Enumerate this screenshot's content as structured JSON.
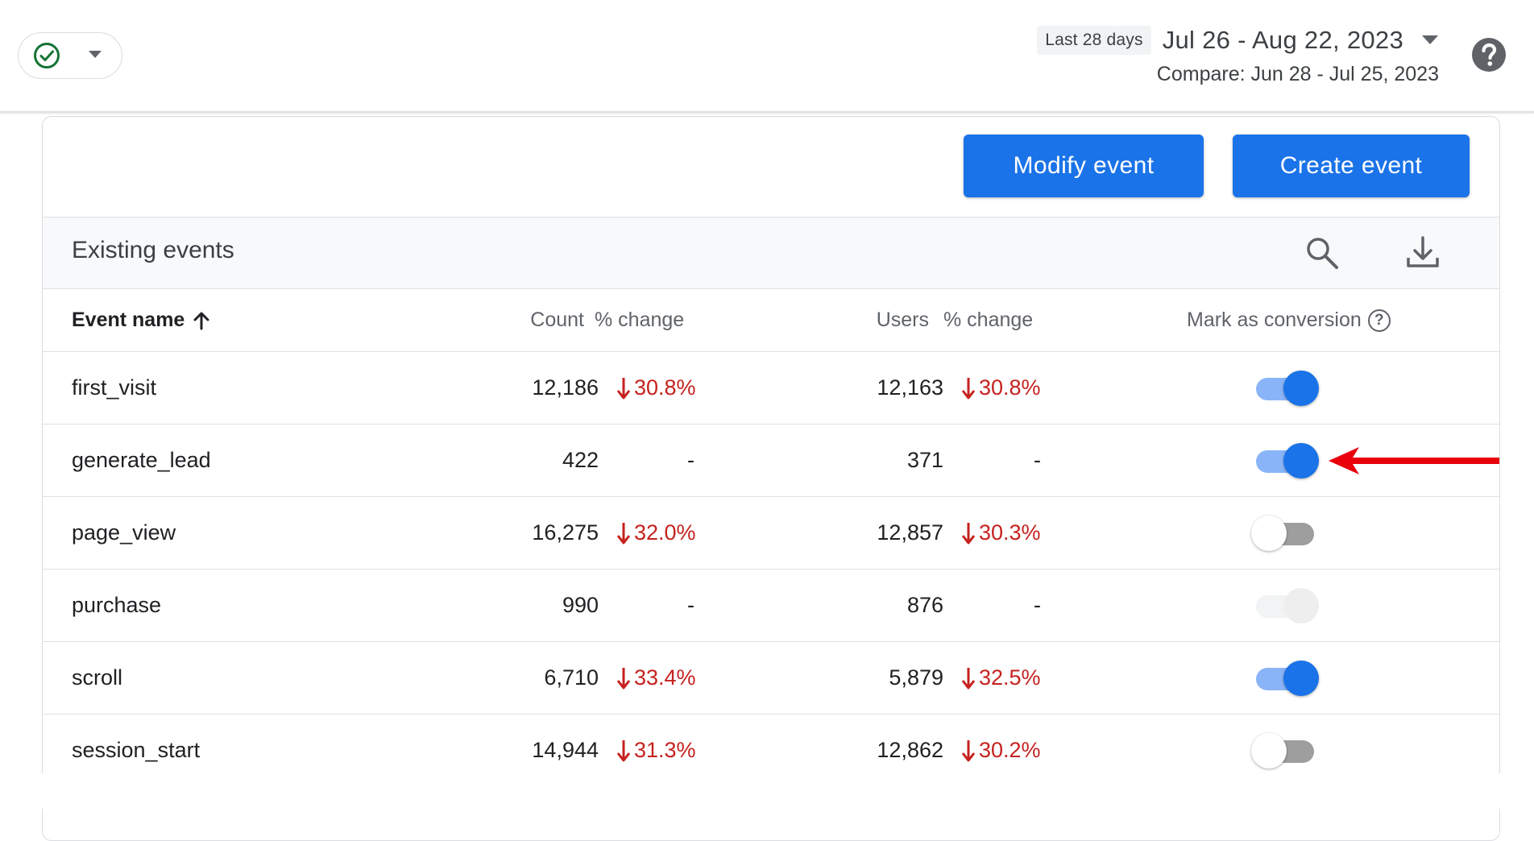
{
  "header": {
    "date_preset": "Last 28 days",
    "date_range": "Jul 26 - Aug 22, 2023",
    "compare_range": "Compare: Jun 28 - Jul 25, 2023"
  },
  "toolbar": {
    "modify_label": "Modify event",
    "create_label": "Create event"
  },
  "section": {
    "title": "Existing events"
  },
  "columns": {
    "event_name": "Event name",
    "count": "Count",
    "count_change": "% change",
    "users": "Users",
    "users_change": "% change",
    "conversion": "Mark as conversion",
    "conversion_help": "?"
  },
  "rows": [
    {
      "name": "first_visit",
      "count": "12,186",
      "count_change": "30.8%",
      "users": "12,163",
      "users_change": "30.8%",
      "conversion": "on"
    },
    {
      "name": "generate_lead",
      "count": "422",
      "count_change": "-",
      "users": "371",
      "users_change": "-",
      "conversion": "on"
    },
    {
      "name": "page_view",
      "count": "16,275",
      "count_change": "32.0%",
      "users": "12,857",
      "users_change": "30.3%",
      "conversion": "off"
    },
    {
      "name": "purchase",
      "count": "990",
      "count_change": "-",
      "users": "876",
      "users_change": "-",
      "conversion": "disabled"
    },
    {
      "name": "scroll",
      "count": "6,710",
      "count_change": "33.4%",
      "users": "5,879",
      "users_change": "32.5%",
      "conversion": "on"
    },
    {
      "name": "session_start",
      "count": "14,944",
      "count_change": "31.3%",
      "users": "12,862",
      "users_change": "30.2%",
      "conversion": "off"
    }
  ],
  "colors": {
    "accent": "#1a73e8",
    "negative": "#c5221f",
    "annotation_arrow": "#e8000b"
  },
  "icons": [
    "check-circle-icon",
    "caret-down-icon",
    "help-icon",
    "search-icon",
    "download-icon",
    "sort-arrow-up-icon",
    "arrow-down-icon"
  ]
}
